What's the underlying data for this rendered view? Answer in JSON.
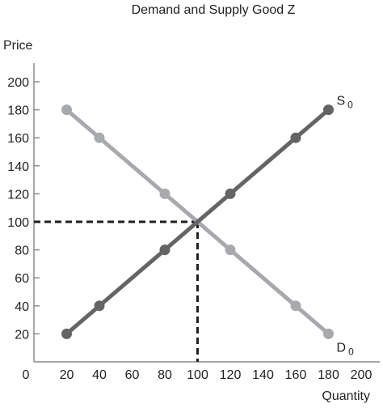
{
  "chart_data": {
    "type": "line",
    "title": "Demand and Supply Good Z",
    "xlabel": "Quantity",
    "ylabel": "Price",
    "xlim": [
      0,
      210
    ],
    "ylim": [
      0,
      210
    ],
    "x_ticks": [
      "0",
      "20",
      "40",
      "60",
      "80",
      "100",
      "120",
      "140",
      "160",
      "180",
      "200"
    ],
    "y_ticks": [
      "20",
      "40",
      "60",
      "80",
      "100",
      "120",
      "140",
      "160",
      "180",
      "200"
    ],
    "grid": false,
    "series": [
      {
        "name": "S",
        "subscript": "0",
        "color": "#646466",
        "points": [
          [
            20,
            20
          ],
          [
            40,
            40
          ],
          [
            80,
            80
          ],
          [
            120,
            120
          ],
          [
            160,
            160
          ],
          [
            180,
            180
          ]
        ]
      },
      {
        "name": "D",
        "subscript": "0",
        "color": "#a7a9ac",
        "points": [
          [
            20,
            180
          ],
          [
            40,
            160
          ],
          [
            80,
            120
          ],
          [
            120,
            80
          ],
          [
            160,
            40
          ],
          [
            180,
            20
          ]
        ]
      }
    ],
    "equilibrium": {
      "x": 100,
      "y": 100,
      "style": "dashed"
    }
  }
}
